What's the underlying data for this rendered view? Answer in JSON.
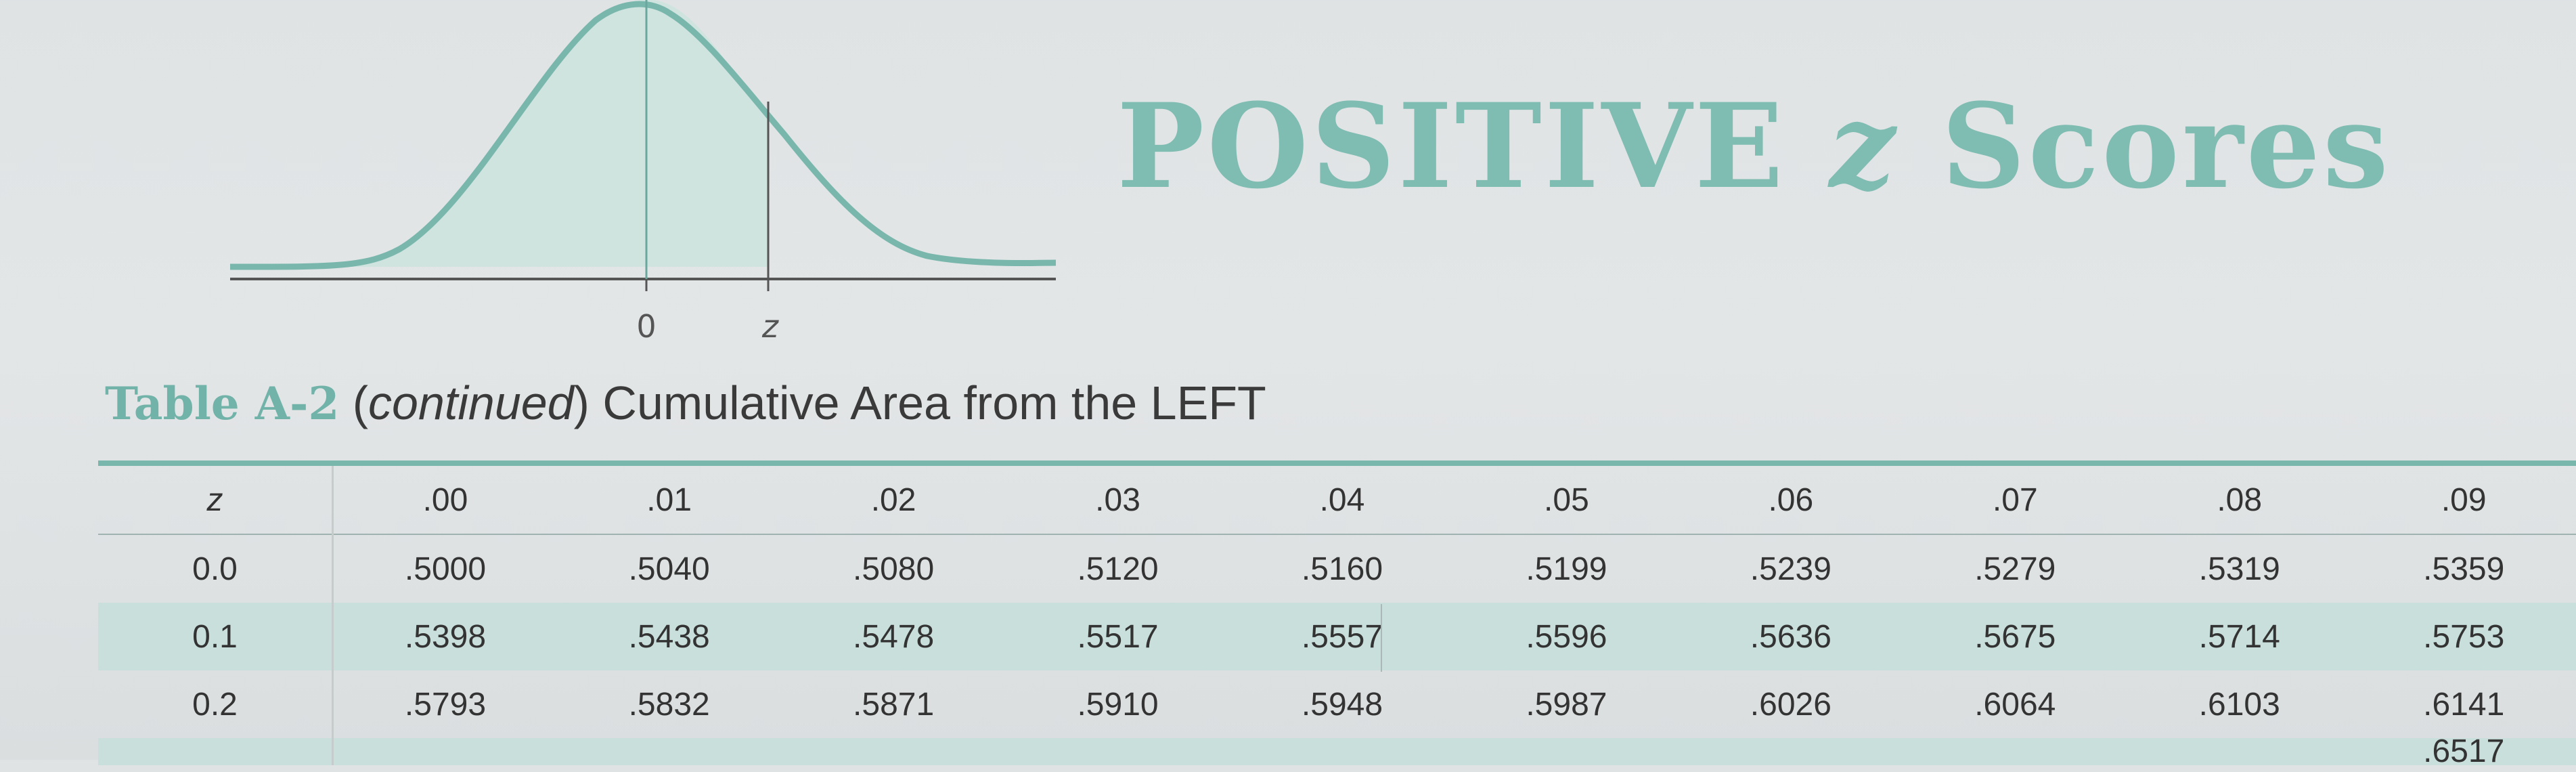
{
  "diagram": {
    "axis_labels": {
      "mean": "0",
      "z": "z"
    },
    "colors": {
      "curve": "#79b7ad",
      "fill": "#cfe3df",
      "axis": "#555555"
    }
  },
  "title": {
    "prefix": "POSITIVE ",
    "z": "z",
    "suffix": " Scores"
  },
  "caption": {
    "label": "Table A-2",
    "continued": "continued",
    "description": "Cumulative Area from the LEFT"
  },
  "table": {
    "headers": [
      "z",
      ".00",
      ".01",
      ".02",
      ".03",
      ".04",
      ".05",
      ".06",
      ".07",
      ".08",
      ".09"
    ],
    "rows": [
      [
        "0.0",
        ".5000",
        ".5040",
        ".5080",
        ".5120",
        ".5160",
        ".5199",
        ".5239",
        ".5279",
        ".5319",
        ".5359"
      ],
      [
        "0.1",
        ".5398",
        ".5438",
        ".5478",
        ".5517",
        ".5557",
        ".5596",
        ".5636",
        ".5675",
        ".5714",
        ".5753"
      ],
      [
        "0.2",
        ".5793",
        ".5832",
        ".5871",
        ".5910",
        ".5948",
        ".5987",
        ".6026",
        ".6064",
        ".6103",
        ".6141"
      ]
    ],
    "partial_last": [
      ".6517"
    ],
    "colors": {
      "accent": "#79b7ad",
      "shade": "#c9dfdc"
    }
  }
}
